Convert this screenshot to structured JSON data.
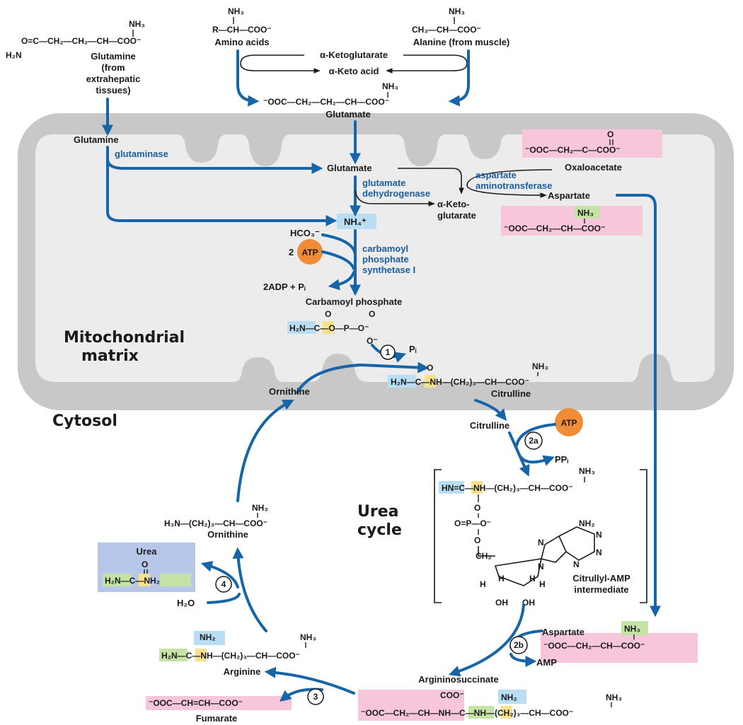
{
  "compartments": {
    "matrix_label_1": "Mitochondrial",
    "matrix_label_2": "matrix",
    "cytosol_label": "Cytosol",
    "cycle_label_1": "Urea",
    "cycle_label_2": "cycle"
  },
  "inputs": {
    "glutamine_struct": "O=C—CH₂—CH₂—CH—COO⁻",
    "glutamine_nh3": "NH₃",
    "glutamine_h2n": "H₂N",
    "glutamine_name_1": "Glutamine",
    "glutamine_name_2": "(from",
    "glutamine_name_3": "extrahepatic",
    "glutamine_name_4": "tissues)",
    "amino_struct": "R—CH—COO⁻",
    "amino_nh3": "NH₃",
    "amino_name": "Amino acids",
    "alanine_struct": "CH₃—CH—COO⁻",
    "alanine_nh3": "NH₃",
    "alanine_name": "Alanine (from muscle)",
    "akg": "α-Ketoglutarate",
    "aka": "α-Keto acid",
    "glutamate_struct": "⁻OOC—CH₂—CH₂—CH—COO⁻",
    "glutamate_nh3": "NH₃",
    "glutamate_name": "Glutamate"
  },
  "matrix": {
    "glutamine": "Glutamine",
    "glutaminase": "glutaminase",
    "glutamate": "Glutamate",
    "gdh_1": "glutamate",
    "gdh_2": "dehydrogenase",
    "akg_1": "α-Keto-",
    "akg_2": "glutarate",
    "oaa_struct": "⁻OOC—CH₂—C—COO⁻",
    "oaa_o": "O",
    "oaa_name": "Oxaloacetate",
    "ast_1": "aspartate",
    "ast_2": "aminotransferase",
    "aspartate": "Aspartate",
    "asp_struct": "⁻OOC—CH₂—CH—COO⁻",
    "asp_nh3": "NH₃",
    "nh4": "NH₄⁺",
    "hco3": "HCO₃⁻",
    "atp2": "2",
    "atp": "ATP",
    "adp": "2ADP + Pᵢ",
    "cps_1": "carbamoyl",
    "cps_2": "phosphate",
    "cps_3": "synthetase I",
    "carbamoyl_name": "Carbamoyl phosphate",
    "cp_struct": "H₂N—C—O—P—O⁻",
    "step1": "1",
    "pi": "Pᵢ",
    "ornithine": "Ornithine",
    "citrulline_struct": "H₂N—C—NH—(CH₂)₃—CH—COO⁻",
    "citrulline_nh3": "NH₃",
    "citrulline_name": "Citrulline"
  },
  "cytosol": {
    "citrulline": "Citrulline",
    "atp": "ATP",
    "step2a": "2a",
    "ppi": "PPᵢ",
    "intermediate_struct": "HN=C—NH—(CH₂)₃—CH—COO⁻",
    "intermediate_nh3": "NH₃",
    "intermediate_p": "O=P—O⁻",
    "adenine_nh2": "NH₂",
    "intermediate_name_1": "Citrullyl-AMP",
    "intermediate_name_2": "intermediate",
    "aspartate": "Aspartate",
    "asp_struct": "⁻OOC—CH₂—CH—COO⁻",
    "asp_nh3": "NH₃",
    "step2b": "2b",
    "amp": "AMP",
    "argsucc_name": "Argininosuccinate",
    "argsucc_struct": "⁻OOC—CH₂—CH—NH—C—NH—(CH₂)₃—CH—COO⁻",
    "argsucc_coo": "COO⁻",
    "argsucc_nh2": "NH₂",
    "argsucc_nh3": "NH₃",
    "step3": "3",
    "fumarate_struct": "⁻OOC—CH=CH—COO⁻",
    "fumarate_name": "Fumarate",
    "arginine_struct": "H₂N—C—NH—(CH₂)₃—CH—COO⁻",
    "arginine_nh2": "NH₂",
    "arginine_nh3": "NH₃",
    "arginine_name": "Arginine",
    "step4": "4",
    "h2o": "H₂O",
    "urea_name": "Urea",
    "urea_struct": "H₂N—C—NH₂",
    "urea_o": "O",
    "ornithine_struct": "H₃N—(CH₂)₃—CH—COO⁻",
    "ornithine_nh3": "NH₃",
    "ornithine_name": "Ornithine"
  },
  "colors": {
    "arrow": "#1565a8",
    "enzyme": "#1b5e9e",
    "mito_outer": "#c8c8c8",
    "mito_inner": "#ececec",
    "atp": "#f08c38",
    "pink": "#f7c6da",
    "blue_box": "#b9ddf2",
    "yellow": "#f7e28c",
    "green": "#c6e3a6",
    "urea_box": "#b7c7ea"
  }
}
